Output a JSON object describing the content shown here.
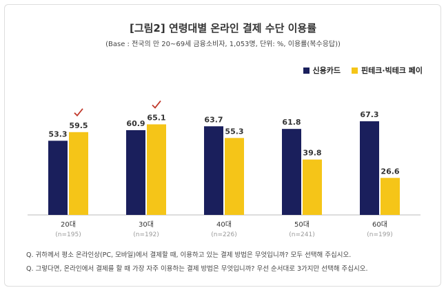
{
  "chart_data": {
    "type": "bar",
    "title": "[그림2] 연령대별 온라인 결제 수단 이용률",
    "subtitle": "(Base : 전국의 만 20~69세 금융소비자, 1,053명, 단위: %, 이용률(복수응답))",
    "categories": [
      "20대",
      "30대",
      "40대",
      "50대",
      "60대"
    ],
    "sample_sizes": [
      "(n=195)",
      "(n=192)",
      "(n=226)",
      "(n=241)",
      "(n=199)"
    ],
    "series": [
      {
        "name": "신용카드",
        "color": "#1a1f5c",
        "values": [
          53.3,
          60.9,
          63.7,
          61.8,
          67.3
        ]
      },
      {
        "name": "핀테크·빅테크 페이",
        "color": "#f5c518",
        "values": [
          59.5,
          65.1,
          55.3,
          39.8,
          26.6
        ]
      }
    ],
    "checkmarks": {
      "series": 1,
      "categories": [
        "20대",
        "30대"
      ],
      "color": "#c0392b",
      "icon": "checkmark-icon"
    },
    "legend_position": "top-right",
    "grid": false,
    "ylim": [
      0,
      70
    ]
  },
  "notes": [
    "Q. 귀하께서 평소 온라인상(PC, 모바일)에서 결제할 때, 이용하고 있는 결제 방법은 무엇입니까? 모두 선택해 주십시오.",
    "Q. 그렇다면, 온라인에서 결제를 할 때 가장 자주 이용하는 결제 방법은 무엇입니까? 우선 순서대로 3가지만 선택해 주십시오."
  ]
}
